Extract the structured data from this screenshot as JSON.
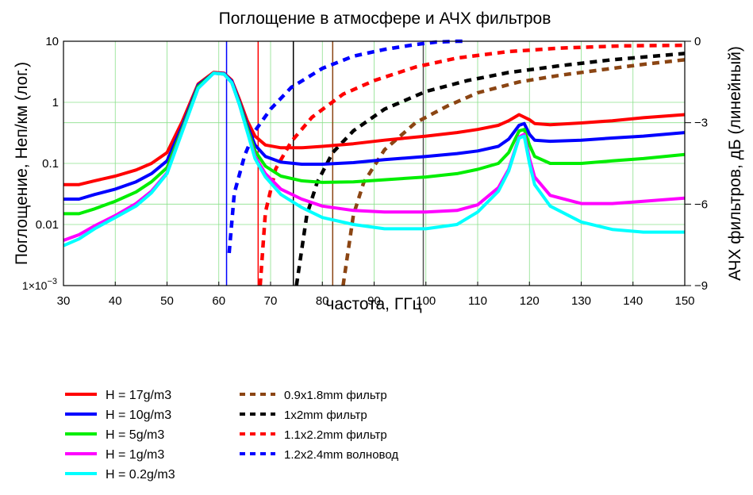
{
  "chart_data": {
    "type": "line",
    "title": "Поглощение в атмосфере и АЧХ фильтров",
    "xlabel": "частота, ГГц",
    "ylabel_left": "Поглощение, Неп/км (лог.)",
    "ylabel_right": "АЧХ фильтров, дБ (линейный)",
    "xlim": [
      30,
      150
    ],
    "ylim_left": [
      0.001,
      10
    ],
    "ylim_right": [
      -9,
      0
    ],
    "y_scale_left": "log",
    "grid": true,
    "x_ticks": [
      "30",
      "40",
      "50",
      "60",
      "70",
      "80",
      "90",
      "100",
      "110",
      "120",
      "130",
      "140",
      "150"
    ],
    "y_ticks_left": [
      {
        "value": 10,
        "label": "10"
      },
      {
        "value": 1,
        "label": "1"
      },
      {
        "value": 0.1,
        "label": "0.1"
      },
      {
        "value": 0.01,
        "label": "0.01"
      }
    ],
    "y_tick_left_bottom": {
      "mant": "1×10",
      "exp": "−3"
    },
    "y_ticks_right": [
      "0",
      "−3",
      "−6",
      "−9"
    ],
    "absorption_series": [
      {
        "name": "H = 17g/m3",
        "color": "#ff0000",
        "points": [
          [
            30,
            0.045
          ],
          [
            33,
            0.045
          ],
          [
            36,
            0.052
          ],
          [
            40,
            0.062
          ],
          [
            44,
            0.078
          ],
          [
            47,
            0.1
          ],
          [
            50,
            0.15
          ],
          [
            53,
            0.5
          ],
          [
            56,
            2.0
          ],
          [
            59,
            3.1
          ],
          [
            61,
            3.0
          ],
          [
            62.5,
            2.3
          ],
          [
            64,
            1.1
          ],
          [
            65.5,
            0.5
          ],
          [
            67,
            0.28
          ],
          [
            69,
            0.2
          ],
          [
            72,
            0.18
          ],
          [
            76,
            0.18
          ],
          [
            80,
            0.19
          ],
          [
            86,
            0.21
          ],
          [
            92,
            0.24
          ],
          [
            100,
            0.28
          ],
          [
            106,
            0.32
          ],
          [
            110,
            0.36
          ],
          [
            114,
            0.42
          ],
          [
            116,
            0.5
          ],
          [
            118,
            0.63
          ],
          [
            120,
            0.52
          ],
          [
            121,
            0.45
          ],
          [
            124,
            0.43
          ],
          [
            130,
            0.46
          ],
          [
            136,
            0.5
          ],
          [
            142,
            0.56
          ],
          [
            150,
            0.63
          ]
        ]
      },
      {
        "name": "H = 10g/m3",
        "color": "#0000ff",
        "points": [
          [
            30,
            0.026
          ],
          [
            33,
            0.026
          ],
          [
            36,
            0.031
          ],
          [
            40,
            0.038
          ],
          [
            44,
            0.05
          ],
          [
            47,
            0.068
          ],
          [
            50,
            0.11
          ],
          [
            53,
            0.42
          ],
          [
            56,
            1.9
          ],
          [
            59,
            3.0
          ],
          [
            61,
            2.95
          ],
          [
            62.5,
            2.2
          ],
          [
            64,
            1.0
          ],
          [
            65.5,
            0.42
          ],
          [
            67,
            0.2
          ],
          [
            69,
            0.13
          ],
          [
            72,
            0.105
          ],
          [
            76,
            0.097
          ],
          [
            80,
            0.097
          ],
          [
            86,
            0.103
          ],
          [
            92,
            0.115
          ],
          [
            100,
            0.13
          ],
          [
            106,
            0.145
          ],
          [
            110,
            0.16
          ],
          [
            114,
            0.19
          ],
          [
            116,
            0.25
          ],
          [
            118,
            0.42
          ],
          [
            119,
            0.45
          ],
          [
            120,
            0.3
          ],
          [
            121,
            0.24
          ],
          [
            124,
            0.23
          ],
          [
            130,
            0.24
          ],
          [
            136,
            0.26
          ],
          [
            142,
            0.28
          ],
          [
            150,
            0.32
          ]
        ]
      },
      {
        "name": "H = 5g/m3",
        "color": "#00ee00",
        "points": [
          [
            30,
            0.015
          ],
          [
            33,
            0.015
          ],
          [
            36,
            0.018
          ],
          [
            40,
            0.024
          ],
          [
            44,
            0.034
          ],
          [
            47,
            0.05
          ],
          [
            50,
            0.085
          ],
          [
            53,
            0.38
          ],
          [
            56,
            1.8
          ],
          [
            59,
            3.0
          ],
          [
            61,
            2.9
          ],
          [
            62.5,
            2.1
          ],
          [
            64,
            0.95
          ],
          [
            65.5,
            0.38
          ],
          [
            67,
            0.16
          ],
          [
            69,
            0.09
          ],
          [
            72,
            0.062
          ],
          [
            76,
            0.052
          ],
          [
            80,
            0.049
          ],
          [
            86,
            0.05
          ],
          [
            92,
            0.054
          ],
          [
            100,
            0.06
          ],
          [
            106,
            0.068
          ],
          [
            110,
            0.08
          ],
          [
            114,
            0.1
          ],
          [
            116,
            0.15
          ],
          [
            118,
            0.34
          ],
          [
            119,
            0.36
          ],
          [
            120,
            0.2
          ],
          [
            121,
            0.13
          ],
          [
            124,
            0.1
          ],
          [
            130,
            0.1
          ],
          [
            136,
            0.11
          ],
          [
            142,
            0.12
          ],
          [
            150,
            0.14
          ]
        ]
      },
      {
        "name": "H = 1g/m3",
        "color": "#ff00ff",
        "points": [
          [
            30,
            0.0055
          ],
          [
            33,
            0.0068
          ],
          [
            36,
            0.0095
          ],
          [
            40,
            0.014
          ],
          [
            44,
            0.022
          ],
          [
            47,
            0.035
          ],
          [
            50,
            0.07
          ],
          [
            53,
            0.35
          ],
          [
            56,
            1.7
          ],
          [
            59,
            3.0
          ],
          [
            61,
            2.9
          ],
          [
            62.5,
            2.1
          ],
          [
            64,
            0.9
          ],
          [
            65.5,
            0.34
          ],
          [
            67,
            0.13
          ],
          [
            69,
            0.068
          ],
          [
            72,
            0.038
          ],
          [
            76,
            0.026
          ],
          [
            80,
            0.02
          ],
          [
            86,
            0.017
          ],
          [
            92,
            0.016
          ],
          [
            100,
            0.016
          ],
          [
            106,
            0.017
          ],
          [
            110,
            0.021
          ],
          [
            114,
            0.04
          ],
          [
            116,
            0.08
          ],
          [
            118,
            0.27
          ],
          [
            119,
            0.3
          ],
          [
            120,
            0.12
          ],
          [
            121,
            0.06
          ],
          [
            124,
            0.03
          ],
          [
            130,
            0.022
          ],
          [
            136,
            0.022
          ],
          [
            142,
            0.024
          ],
          [
            150,
            0.027
          ]
        ]
      },
      {
        "name": "H = 0.2g/m3",
        "color": "#00ffff",
        "points": [
          [
            30,
            0.0045
          ],
          [
            33,
            0.0058
          ],
          [
            36,
            0.0085
          ],
          [
            40,
            0.013
          ],
          [
            44,
            0.02
          ],
          [
            47,
            0.033
          ],
          [
            50,
            0.068
          ],
          [
            53,
            0.34
          ],
          [
            56,
            1.7
          ],
          [
            59,
            3.0
          ],
          [
            61,
            2.9
          ],
          [
            62.5,
            2.1
          ],
          [
            64,
            0.9
          ],
          [
            65.5,
            0.33
          ],
          [
            67,
            0.12
          ],
          [
            69,
            0.06
          ],
          [
            72,
            0.031
          ],
          [
            76,
            0.019
          ],
          [
            80,
            0.013
          ],
          [
            86,
            0.01
          ],
          [
            92,
            0.0085
          ],
          [
            100,
            0.0085
          ],
          [
            106,
            0.01
          ],
          [
            110,
            0.016
          ],
          [
            114,
            0.035
          ],
          [
            116,
            0.075
          ],
          [
            118,
            0.26
          ],
          [
            119,
            0.28
          ],
          [
            120,
            0.1
          ],
          [
            121,
            0.045
          ],
          [
            124,
            0.02
          ],
          [
            130,
            0.011
          ],
          [
            136,
            0.0083
          ],
          [
            142,
            0.0075
          ],
          [
            150,
            0.0075
          ]
        ]
      }
    ],
    "filter_series": [
      {
        "name": "0.9x1.8mm  фильтр",
        "color": "#8b4513",
        "points": [
          [
            84,
            -9
          ],
          [
            86,
            -6.4
          ],
          [
            88,
            -5.2
          ],
          [
            92,
            -4.0
          ],
          [
            98,
            -3.0
          ],
          [
            104,
            -2.4
          ],
          [
            110,
            -1.9
          ],
          [
            118,
            -1.5
          ],
          [
            126,
            -1.25
          ],
          [
            134,
            -1.05
          ],
          [
            142,
            -0.85
          ],
          [
            150,
            -0.68
          ]
        ]
      },
      {
        "name": "1x2mm  фильтр",
        "color": "#000000",
        "points": [
          [
            75,
            -9
          ],
          [
            77,
            -6.4
          ],
          [
            79,
            -5.2
          ],
          [
            82,
            -4.1
          ],
          [
            86,
            -3.3
          ],
          [
            92,
            -2.5
          ],
          [
            100,
            -1.85
          ],
          [
            108,
            -1.45
          ],
          [
            116,
            -1.15
          ],
          [
            126,
            -0.9
          ],
          [
            136,
            -0.68
          ],
          [
            150,
            -0.45
          ]
        ]
      },
      {
        "name": "1.1x2.2mm  фильтр",
        "color": "#ff0000",
        "points": [
          [
            68,
            -9
          ],
          [
            69,
            -6.3
          ],
          [
            71,
            -4.7
          ],
          [
            74,
            -3.7
          ],
          [
            78,
            -2.8
          ],
          [
            84,
            -1.95
          ],
          [
            90,
            -1.45
          ],
          [
            98,
            -0.95
          ],
          [
            106,
            -0.62
          ],
          [
            116,
            -0.38
          ],
          [
            126,
            -0.25
          ],
          [
            138,
            -0.17
          ],
          [
            150,
            -0.15
          ]
        ]
      },
      {
        "name": "1.2x2.4mm  волновод",
        "color": "#0000ff",
        "points": [
          [
            62,
            -7.8
          ],
          [
            63,
            -5.6
          ],
          [
            65,
            -4.2
          ],
          [
            67,
            -3.3
          ],
          [
            70,
            -2.5
          ],
          [
            74,
            -1.7
          ],
          [
            80,
            -1.0
          ],
          [
            86,
            -0.55
          ],
          [
            92,
            -0.3
          ],
          [
            98,
            -0.12
          ],
          [
            102,
            -0.03
          ],
          [
            106,
            0
          ],
          [
            108,
            0
          ]
        ]
      }
    ],
    "vertical_markers": [
      {
        "x": 61.5,
        "color": "#0000ff"
      },
      {
        "x": 67.6,
        "color": "#ff0000"
      },
      {
        "x": 74.4,
        "color": "#000000"
      },
      {
        "x": 82.0,
        "color": "#8b4513"
      },
      {
        "x": 99.5,
        "color": "#555555"
      }
    ]
  }
}
